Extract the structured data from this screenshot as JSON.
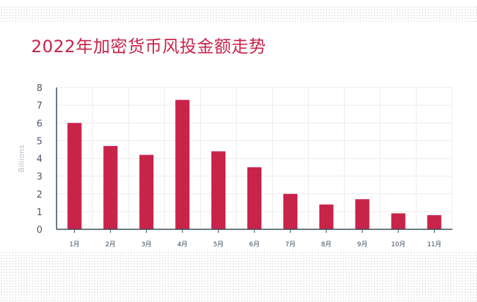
{
  "chart_data": {
    "type": "bar",
    "title": "2022年加密货币风投金额走势",
    "ylabel": "Billions",
    "xlabel": "",
    "categories": [
      "1月",
      "2月",
      "3月",
      "4月",
      "5月",
      "6月",
      "7月",
      "8月",
      "9月",
      "10月",
      "11月"
    ],
    "values": [
      6.0,
      4.7,
      4.2,
      7.3,
      4.4,
      3.5,
      2.0,
      1.4,
      1.7,
      0.9,
      0.8
    ],
    "ylim": [
      0,
      8
    ],
    "y_ticks": [
      "0",
      "1",
      "2",
      "3",
      "4",
      "5",
      "6",
      "7",
      "8"
    ],
    "grid": true,
    "bar_color": "#c8244a",
    "title_color": "#c8244a",
    "axis_color": "#3a4a5a",
    "grid_color": "#ececec"
  }
}
